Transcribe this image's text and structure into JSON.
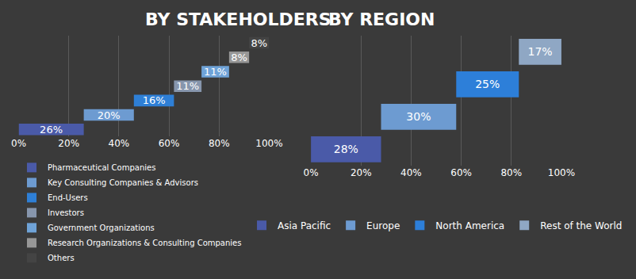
{
  "chart_data": [
    {
      "type": "bar",
      "title": "BY STAKEHOLDERS",
      "orientation": "horizontal",
      "stacked": true,
      "data_labels": true,
      "tick_labels": "x",
      "grid": true,
      "legend": "bottom",
      "xlim": [
        0,
        100
      ],
      "xticks": [
        {
          "value": 0,
          "label": "0%"
        },
        {
          "value": 20,
          "label": "20%"
        },
        {
          "value": 40,
          "label": "40%"
        },
        {
          "value": 60,
          "label": "60%"
        },
        {
          "value": 80,
          "label": "80%"
        },
        {
          "value": 100,
          "label": "100%"
        }
      ],
      "series": [
        {
          "name": "Pharmaceutical Companies",
          "color": "#4a5aa8",
          "values": [
            26
          ],
          "value_labels": [
            "26%"
          ]
        },
        {
          "name": "Key Consulting Companies & Advisors",
          "color": "#6d9bd1",
          "values": [
            20
          ],
          "value_labels": [
            "20%"
          ]
        },
        {
          "name": "End-Users",
          "color": "#2e7fd6",
          "values": [
            16
          ],
          "value_labels": [
            "16%"
          ]
        },
        {
          "name": "Investors",
          "color": "#8796ad",
          "values": [
            11
          ],
          "value_labels": [
            "11%"
          ]
        },
        {
          "name": "Government Organizations",
          "color": "#6fa3d8",
          "values": [
            11
          ],
          "value_labels": [
            "11%"
          ]
        },
        {
          "name": "Research Organizations & Consulting Companies",
          "color": "#979797",
          "values": [
            8
          ],
          "value_labels": [
            "8%"
          ]
        },
        {
          "name": "Others",
          "color": "#444444",
          "values": [
            8
          ],
          "value_labels": [
            "8%"
          ]
        }
      ]
    },
    {
      "type": "bar",
      "title": "BY REGION",
      "orientation": "horizontal",
      "stacked": true,
      "data_labels": true,
      "tick_labels": "x",
      "grid": true,
      "legend": "bottom",
      "xlim": [
        0,
        100
      ],
      "xticks": [
        {
          "value": 0,
          "label": "0%"
        },
        {
          "value": 20,
          "label": "20%"
        },
        {
          "value": 40,
          "label": "40%"
        },
        {
          "value": 60,
          "label": "60%"
        },
        {
          "value": 80,
          "label": "80%"
        },
        {
          "value": 100,
          "label": "100%"
        }
      ],
      "series": [
        {
          "name": "Asia Pacific",
          "color": "#4a5aa8",
          "values": [
            28
          ],
          "value_labels": [
            "28%"
          ]
        },
        {
          "name": "Europe",
          "color": "#6d9bd1",
          "values": [
            30
          ],
          "value_labels": [
            "30%"
          ]
        },
        {
          "name": "North America",
          "color": "#2d7fd9",
          "values": [
            25
          ],
          "value_labels": [
            "25%"
          ]
        },
        {
          "name": "Rest of the World",
          "color": "#8fa7c4",
          "values": [
            17
          ],
          "value_labels": [
            "17%"
          ]
        }
      ]
    }
  ]
}
